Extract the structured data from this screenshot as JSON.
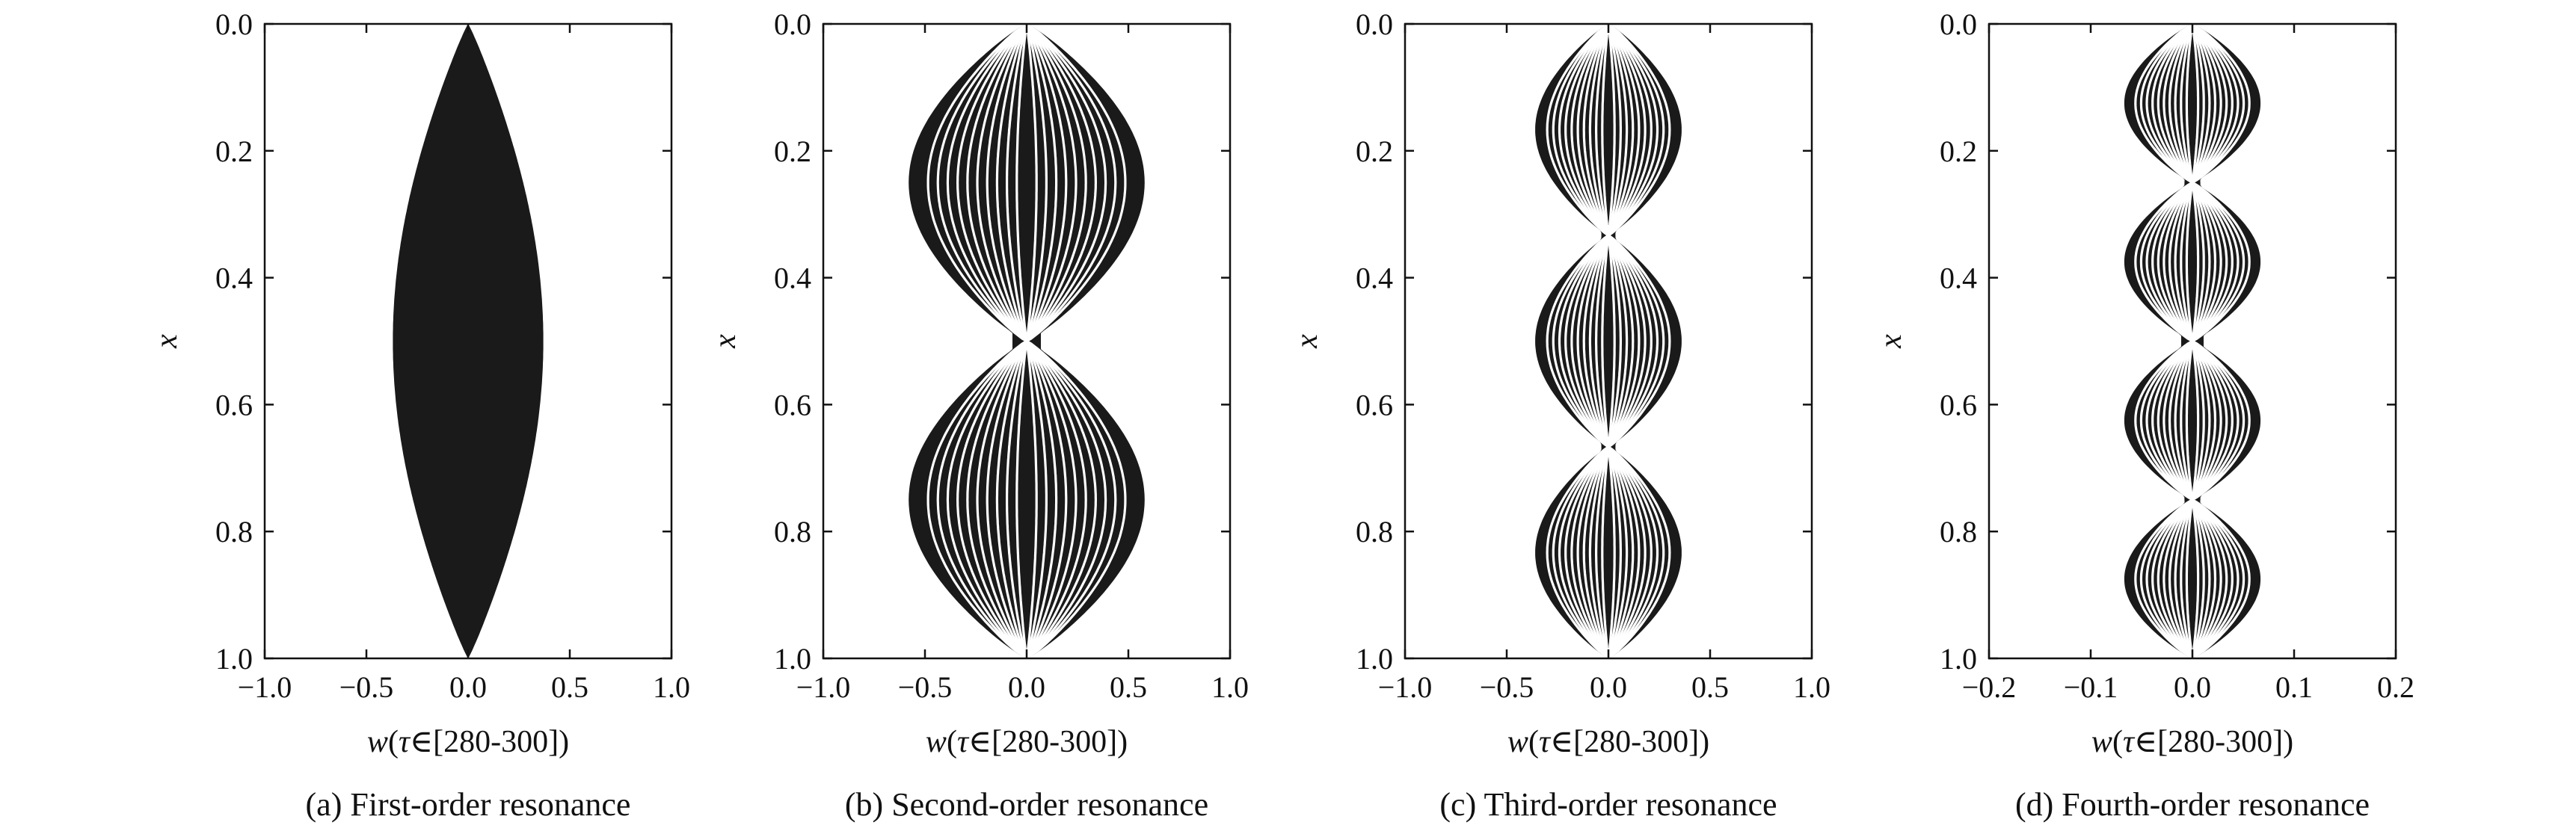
{
  "chart_data": [
    {
      "type": "area",
      "panel": "a",
      "mode_order": 1,
      "caption": "(a) First-order resonance",
      "ylabel": "x",
      "xlabel": "w(τ∈[280-300])",
      "xlim": [
        -1.0,
        1.0
      ],
      "ylim": [
        0.0,
        1.0
      ],
      "y_inverted": true,
      "xticks": [
        "−1.0",
        "−0.5",
        "0.0",
        "0.5",
        "1.0"
      ],
      "yticks": [
        "0.0",
        "0.2",
        "0.4",
        "0.6",
        "0.8",
        "1.0"
      ],
      "amplitude": 0.37,
      "grid": false
    },
    {
      "type": "area",
      "panel": "b",
      "mode_order": 2,
      "caption": "(b) Second-order resonance",
      "ylabel": "x",
      "xlabel": "w(τ∈[280-300])",
      "xlim": [
        -1.0,
        1.0
      ],
      "ylim": [
        0.0,
        1.0
      ],
      "y_inverted": true,
      "xticks": [
        "−1.0",
        "−0.5",
        "0.0",
        "0.5",
        "1.0"
      ],
      "yticks": [
        "0.0",
        "0.2",
        "0.4",
        "0.6",
        "0.8",
        "1.0"
      ],
      "amplitude": 0.58,
      "node_halfwidth": 0.07,
      "grid": false
    },
    {
      "type": "area",
      "panel": "c",
      "mode_order": 3,
      "caption": "(c) Third-order resonance",
      "ylabel": "x",
      "xlabel": "w(τ∈[280-300])",
      "xlim": [
        -1.0,
        1.0
      ],
      "ylim": [
        0.0,
        1.0
      ],
      "y_inverted": true,
      "xticks": [
        "−1.0",
        "−0.5",
        "0.0",
        "0.5",
        "1.0"
      ],
      "yticks": [
        "0.0",
        "0.2",
        "0.4",
        "0.6",
        "0.8",
        "1.0"
      ],
      "amplitude": 0.36,
      "node_halfwidth": 0.04,
      "grid": false
    },
    {
      "type": "area",
      "panel": "d",
      "mode_order": 4,
      "caption": "(d) Fourth-order resonance",
      "ylabel": "x",
      "xlabel": "w(τ∈[280-300])",
      "xlim": [
        -0.2,
        0.2
      ],
      "ylim": [
        0.0,
        1.0
      ],
      "y_inverted": true,
      "xticks": [
        "−0.2",
        "−0.1",
        "0.0",
        "0.1",
        "0.2"
      ],
      "yticks": [
        "0.0",
        "0.2",
        "0.4",
        "0.6",
        "0.8",
        "1.0"
      ],
      "amplitude": 0.067,
      "node_halfwidth": 0.011,
      "grid": false
    }
  ]
}
